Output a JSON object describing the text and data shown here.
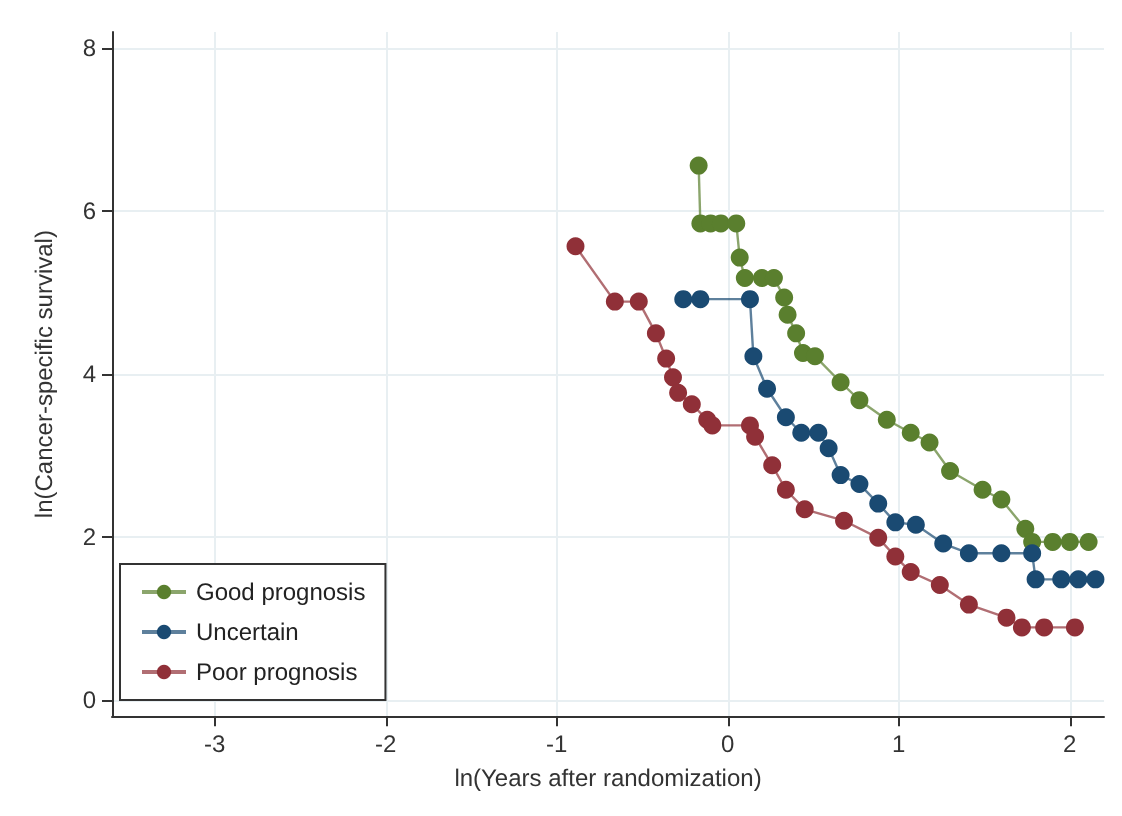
{
  "chart_data": {
    "type": "line",
    "xlabel": "ln(Years after randomization)",
    "ylabel": "ln(Cancer-specific survival)",
    "xlim": [
      -3.6,
      2.2
    ],
    "xticks": [
      -3,
      -2,
      -1,
      0,
      1,
      2
    ],
    "ylim": [
      -0.2,
      8.2
    ],
    "yticks": [
      0,
      2,
      4,
      6,
      8
    ],
    "grid": true,
    "legend": "bottom left",
    "marker": "circle",
    "line_style": "solid",
    "series": [
      {
        "name": "Good prognosis",
        "color": "#5a7f2e",
        "x": [
          -0.17,
          -0.16,
          -0.1,
          -0.04,
          0.05,
          0.07,
          0.1,
          0.2,
          0.27,
          0.33,
          0.35,
          0.4,
          0.44,
          0.51,
          0.66,
          0.77,
          0.93,
          1.07,
          1.18,
          1.3,
          1.49,
          1.6,
          1.74,
          1.78,
          1.9,
          2.0,
          2.11
        ],
        "values": [
          6.56,
          5.85,
          5.85,
          5.85,
          5.85,
          5.43,
          5.18,
          5.18,
          5.18,
          4.94,
          4.73,
          4.5,
          4.26,
          4.22,
          3.9,
          3.68,
          3.44,
          3.28,
          3.16,
          2.81,
          2.58,
          2.46,
          2.1,
          1.94,
          1.94,
          1.94,
          1.94
        ]
      },
      {
        "name": "Uncertain",
        "color": "#1a4a72",
        "x": [
          -0.26,
          -0.16,
          0.13,
          0.15,
          0.23,
          0.34,
          0.43,
          0.53,
          0.59,
          0.66,
          0.77,
          0.88,
          0.98,
          1.1,
          1.26,
          1.41,
          1.6,
          1.78,
          1.8,
          1.95,
          2.05,
          2.15
        ],
        "values": [
          4.92,
          4.92,
          4.92,
          4.22,
          3.82,
          3.47,
          3.28,
          3.28,
          3.09,
          2.76,
          2.65,
          2.41,
          2.18,
          2.15,
          1.92,
          1.8,
          1.8,
          1.8,
          1.48,
          1.48,
          1.48,
          1.48
        ]
      },
      {
        "name": "Poor prognosis",
        "color": "#903038",
        "x": [
          -0.89,
          -0.66,
          -0.52,
          -0.42,
          -0.36,
          -0.32,
          -0.29,
          -0.21,
          -0.12,
          -0.09,
          0.13,
          0.16,
          0.26,
          0.34,
          0.45,
          0.68,
          0.88,
          0.98,
          1.07,
          1.24,
          1.41,
          1.63,
          1.72,
          1.85,
          2.03
        ],
        "values": [
          5.57,
          4.89,
          4.89,
          4.5,
          4.19,
          3.96,
          3.77,
          3.63,
          3.44,
          3.37,
          3.37,
          3.23,
          2.88,
          2.58,
          2.34,
          2.2,
          1.99,
          1.76,
          1.57,
          1.41,
          1.17,
          1.01,
          0.89,
          0.89,
          0.89
        ]
      }
    ]
  }
}
